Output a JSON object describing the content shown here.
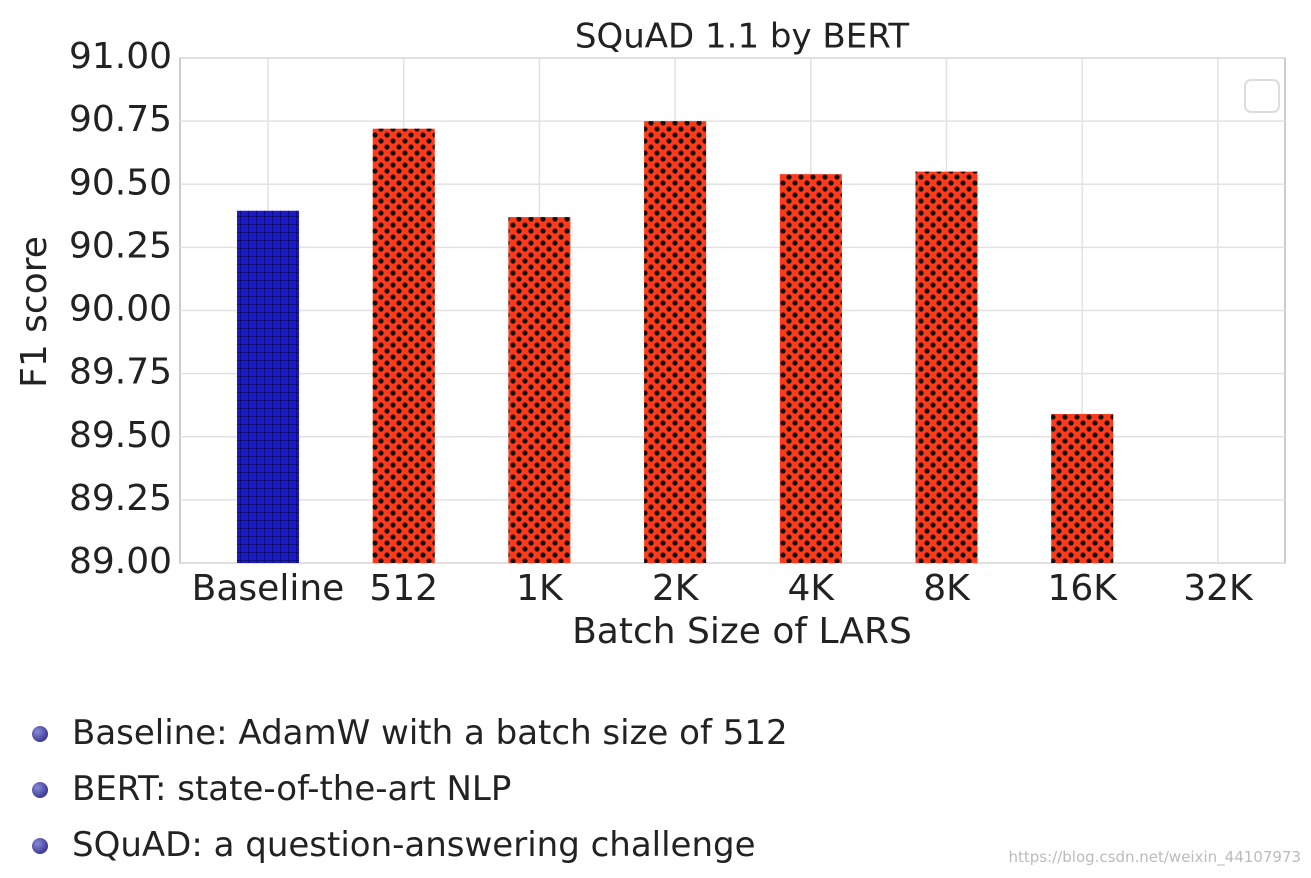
{
  "chart_data": {
    "type": "bar",
    "title": "SQuAD 1.1 by BERT",
    "x_label": "Batch Size of LARS",
    "y_label": "F1 score",
    "categories": [
      "Baseline",
      "512",
      "1K",
      "2K",
      "4K",
      "8K",
      "16K",
      "32K"
    ],
    "values": [
      90.395,
      90.72,
      90.37,
      90.75,
      90.54,
      90.55,
      89.59,
      null
    ],
    "colors": [
      "#1a1ac8",
      "#ff3a1a",
      "#ff3a1a",
      "#ff3a1a",
      "#ff3a1a",
      "#ff3a1a",
      "#ff3a1a",
      "#ff3a1a"
    ],
    "ylim": [
      89,
      91
    ],
    "yticks": [
      {
        "value": 89,
        "label": "89.00"
      },
      {
        "value": 89.25,
        "label": "89.25"
      },
      {
        "value": 89.5,
        "label": "89.50"
      },
      {
        "value": 89.75,
        "label": "89.75"
      },
      {
        "value": 90,
        "label": "90.00"
      },
      {
        "value": 90.25,
        "label": "90.25"
      },
      {
        "value": 90.5,
        "label": "90.50"
      },
      {
        "value": 90.75,
        "label": "90.75"
      },
      {
        "value": 91,
        "label": "91.00"
      }
    ],
    "grid": true
  },
  "notes": [
    "Baseline: AdamW with a batch size of 512",
    "BERT: state-of-the-art NLP",
    "SQuAD: a question-answering challenge"
  ],
  "watermark": "https://blog.csdn.net/weixin_44107973"
}
